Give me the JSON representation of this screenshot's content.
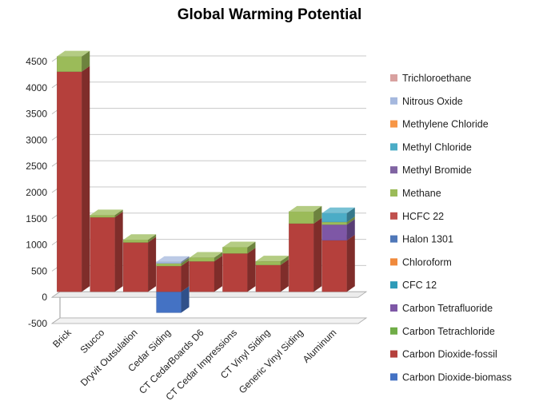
{
  "chart_data": {
    "type": "bar",
    "stacked": true,
    "three_d": true,
    "title": "Global Warming Potential",
    "xlabel": "",
    "ylabel": "",
    "ylim": [
      -500,
      4500
    ],
    "yticks": [
      4500,
      4000,
      3500,
      3000,
      2500,
      2000,
      1500,
      1000,
      500,
      0,
      -500
    ],
    "grid": true,
    "legend_position": "right",
    "categories": [
      "Brick",
      "Stucco",
      "Dryvit Outsulation",
      "Cedar Siding",
      "CT CedarBoards D6",
      "CT Cedar Impressions",
      "CT Vinyl Siding",
      "Generic Vinyl Siding",
      "Aluminum"
    ],
    "series": [
      {
        "name": "Carbon Dioxide-biomass",
        "color": "#4472C4",
        "values": [
          0,
          0,
          0,
          -400,
          0,
          0,
          0,
          0,
          0
        ]
      },
      {
        "name": "Carbon Dioxide-fossil",
        "color": "#B5403C",
        "values": [
          4200,
          1420,
          940,
          490,
          580,
          730,
          510,
          1300,
          980
        ]
      },
      {
        "name": "Carbon Tetrachloride",
        "color": "#70AD47",
        "values": [
          0,
          0,
          0,
          0,
          0,
          0,
          0,
          0,
          0
        ]
      },
      {
        "name": "Carbon Tetrafluoride",
        "color": "#7E57A6",
        "values": [
          0,
          0,
          0,
          0,
          0,
          0,
          0,
          0,
          300
        ]
      },
      {
        "name": "CFC 12",
        "color": "#2E9BB8",
        "values": [
          0,
          0,
          0,
          0,
          0,
          0,
          0,
          0,
          0
        ]
      },
      {
        "name": "Chloroform",
        "color": "#F08A3C",
        "values": [
          0,
          0,
          0,
          0,
          0,
          0,
          0,
          0,
          0
        ]
      },
      {
        "name": "Halon 1301",
        "color": "#4F77B8",
        "values": [
          0,
          0,
          0,
          0,
          0,
          0,
          0,
          0,
          0
        ]
      },
      {
        "name": "HCFC 22",
        "color": "#C0504D",
        "values": [
          0,
          0,
          0,
          0,
          0,
          0,
          0,
          0,
          0
        ]
      },
      {
        "name": "Methane",
        "color": "#9BBB59",
        "values": [
          290,
          40,
          50,
          50,
          70,
          120,
          70,
          230,
          50
        ]
      },
      {
        "name": "Methyl Bromide",
        "color": "#8064A2",
        "values": [
          0,
          0,
          0,
          0,
          0,
          0,
          0,
          0,
          0
        ]
      },
      {
        "name": "Methyl Chloride",
        "color": "#4BACC6",
        "values": [
          0,
          0,
          0,
          0,
          0,
          0,
          0,
          0,
          170
        ]
      },
      {
        "name": "Methylene Chloride",
        "color": "#F79646",
        "values": [
          0,
          0,
          0,
          0,
          0,
          0,
          0,
          0,
          0
        ]
      },
      {
        "name": "Nitrous Oxide",
        "color": "#A5B8DE",
        "values": [
          0,
          0,
          0,
          30,
          0,
          0,
          0,
          0,
          0
        ]
      },
      {
        "name": "Trichloroethane",
        "color": "#D8A1A0",
        "values": [
          0,
          0,
          0,
          0,
          0,
          0,
          0,
          0,
          0
        ]
      }
    ]
  }
}
